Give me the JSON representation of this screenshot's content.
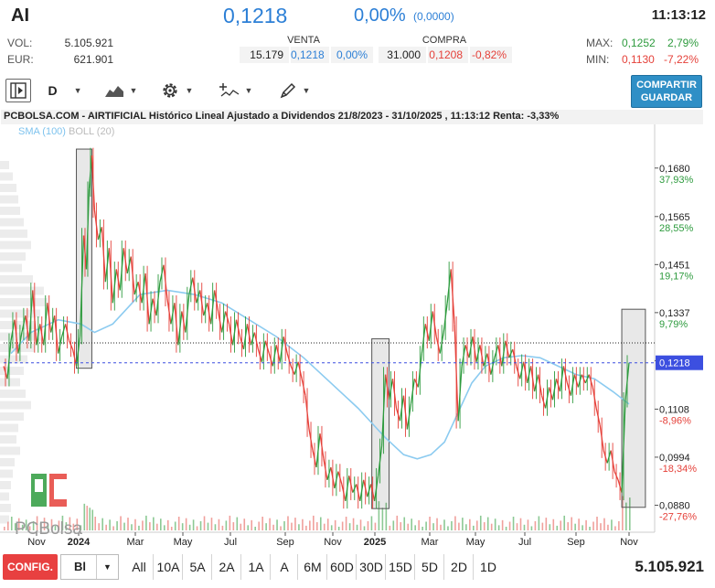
{
  "header": {
    "ticker": "AI",
    "price": "0,1218",
    "change_pct": "0,00%",
    "change_abs": "(0,0000)",
    "time": "11:13:12"
  },
  "stats": {
    "vol_label": "VOL:",
    "vol_value": "5.105.921",
    "eur_label": "EUR:",
    "eur_value": "621.901",
    "max_label": "MAX:",
    "max_value": "0,1252",
    "max_pct": "2,79%",
    "min_label": "MIN:",
    "min_value": "0,1130",
    "min_pct": "-7,22%"
  },
  "book": {
    "venta_label": "VENTA",
    "venta_qty": "15.179",
    "venta_price": "0,1218",
    "venta_pct": "0,00%",
    "compra_label": "COMPRA",
    "compra_qty": "31.000",
    "compra_price": "0,1208",
    "compra_pct": "-0,82%"
  },
  "toolbar": {
    "period": "D",
    "share_line1": "COMPARTIR",
    "share_line2": "GUARDAR",
    "icons": [
      "panel-toggle-icon",
      "area-chart-icon",
      "gear-icon",
      "indicators-icon",
      "drawing-pencil-icon"
    ]
  },
  "chart": {
    "title": "PCBOLSA.COM - AIRTIFICIAL Histórico Lineal Ajustado a Dividendos 21/8/2023 - 31/10/2025 , 11:13:12 Renta: -3,33%",
    "legend_sma": "SMA (100)",
    "legend_boll": "BOLL (20)",
    "watermark": "PCBolsa",
    "colors": {
      "up": "#2e9b3e",
      "down": "#e5413a",
      "sma": "#8ccbf0",
      "last": "#3c4fe0"
    }
  },
  "chart_data": {
    "type": "line",
    "ylim": [
      0.0855,
      0.1775
    ],
    "y_ticks": [
      {
        "value": 0.168,
        "label": "0,1680",
        "pct": "37,93%"
      },
      {
        "value": 0.1565,
        "label": "0,1565",
        "pct": "28,55%"
      },
      {
        "value": 0.1451,
        "label": "0,1451",
        "pct": "19,17%"
      },
      {
        "value": 0.1337,
        "label": "0,1337",
        "pct": "9,79%"
      },
      {
        "value": 0.1223,
        "label": "0,1223",
        "pct": ""
      },
      {
        "value": 0.1108,
        "label": "0,1108",
        "pct": "-8,96%"
      },
      {
        "value": 0.0994,
        "label": "0,0994",
        "pct": "-18,34%"
      },
      {
        "value": 0.088,
        "label": "0,0880",
        "pct": "-27,76%"
      }
    ],
    "x_ticks": [
      {
        "label": "Nov",
        "bold": false
      },
      {
        "label": "2024",
        "bold": true
      },
      {
        "label": "Mar",
        "bold": false
      },
      {
        "label": "May",
        "bold": false
      },
      {
        "label": "Jul",
        "bold": false
      },
      {
        "label": "Sep",
        "bold": false
      },
      {
        "label": "Nov",
        "bold": false
      },
      {
        "label": "2025",
        "bold": true
      },
      {
        "label": "Mar",
        "bold": false
      },
      {
        "label": "May",
        "bold": false
      },
      {
        "label": "Jul",
        "bold": false
      },
      {
        "label": "Sep",
        "bold": false
      },
      {
        "label": "Nov",
        "bold": false
      }
    ],
    "last_price": {
      "value": 0.1218,
      "label": "0,1218"
    },
    "reference_price": 0.1265,
    "price": [
      [
        0,
        0.121
      ],
      [
        4,
        0.118
      ],
      [
        8,
        0.127
      ],
      [
        12,
        0.132
      ],
      [
        16,
        0.124
      ],
      [
        20,
        0.129
      ],
      [
        24,
        0.133
      ],
      [
        28,
        0.127
      ],
      [
        32,
        0.139
      ],
      [
        36,
        0.126
      ],
      [
        40,
        0.131
      ],
      [
        44,
        0.126
      ],
      [
        48,
        0.136
      ],
      [
        52,
        0.129
      ],
      [
        56,
        0.133
      ],
      [
        60,
        0.124
      ],
      [
        64,
        0.128
      ],
      [
        68,
        0.131
      ],
      [
        72,
        0.127
      ],
      [
        76,
        0.125
      ],
      [
        80,
        0.121
      ],
      [
        84,
        0.128
      ],
      [
        88,
        0.152
      ],
      [
        91,
        0.144
      ],
      [
        94,
        0.163
      ],
      [
        97,
        0.171
      ],
      [
        100,
        0.158
      ],
      [
        104,
        0.151
      ],
      [
        108,
        0.154
      ],
      [
        112,
        0.141
      ],
      [
        116,
        0.149
      ],
      [
        120,
        0.136
      ],
      [
        124,
        0.144
      ],
      [
        128,
        0.139
      ],
      [
        132,
        0.149
      ],
      [
        136,
        0.143
      ],
      [
        140,
        0.147
      ],
      [
        144,
        0.138
      ],
      [
        148,
        0.141
      ],
      [
        152,
        0.136
      ],
      [
        156,
        0.143
      ],
      [
        160,
        0.131
      ],
      [
        164,
        0.137
      ],
      [
        168,
        0.133
      ],
      [
        172,
        0.141
      ],
      [
        176,
        0.145
      ],
      [
        180,
        0.137
      ],
      [
        184,
        0.131
      ],
      [
        188,
        0.136
      ],
      [
        192,
        0.126
      ],
      [
        196,
        0.134
      ],
      [
        200,
        0.129
      ],
      [
        204,
        0.138
      ],
      [
        208,
        0.142
      ],
      [
        212,
        0.136
      ],
      [
        216,
        0.139
      ],
      [
        220,
        0.133
      ],
      [
        224,
        0.136
      ],
      [
        228,
        0.131
      ],
      [
        232,
        0.139
      ],
      [
        236,
        0.134
      ],
      [
        240,
        0.129
      ],
      [
        244,
        0.134
      ],
      [
        248,
        0.131
      ],
      [
        252,
        0.126
      ],
      [
        256,
        0.132
      ],
      [
        260,
        0.128
      ],
      [
        264,
        0.125
      ],
      [
        268,
        0.131
      ],
      [
        272,
        0.126
      ],
      [
        276,
        0.129
      ],
      [
        280,
        0.125
      ],
      [
        284,
        0.122
      ],
      [
        288,
        0.127
      ],
      [
        292,
        0.124
      ],
      [
        296,
        0.121
      ],
      [
        300,
        0.126
      ],
      [
        304,
        0.122
      ],
      [
        308,
        0.128
      ],
      [
        312,
        0.124
      ],
      [
        316,
        0.121
      ],
      [
        320,
        0.119
      ],
      [
        324,
        0.122
      ],
      [
        328,
        0.118
      ],
      [
        332,
        0.114
      ],
      [
        336,
        0.106
      ],
      [
        340,
        0.101
      ],
      [
        344,
        0.097
      ],
      [
        348,
        0.105
      ],
      [
        352,
        0.099
      ],
      [
        356,
        0.094
      ],
      [
        360,
        0.097
      ],
      [
        364,
        0.092
      ],
      [
        368,
        0.096
      ],
      [
        372,
        0.093
      ],
      [
        376,
        0.089
      ],
      [
        380,
        0.095
      ],
      [
        384,
        0.091
      ],
      [
        388,
        0.093
      ],
      [
        392,
        0.089
      ],
      [
        396,
        0.094
      ],
      [
        400,
        0.09
      ],
      [
        404,
        0.093
      ],
      [
        408,
        0.089
      ],
      [
        412,
        0.095
      ],
      [
        416,
        0.102
      ],
      [
        420,
        0.119
      ],
      [
        424,
        0.113
      ],
      [
        428,
        0.118
      ],
      [
        432,
        0.111
      ],
      [
        436,
        0.108
      ],
      [
        440,
        0.114
      ],
      [
        444,
        0.106
      ],
      [
        448,
        0.112
      ],
      [
        452,
        0.118
      ],
      [
        456,
        0.116
      ],
      [
        460,
        0.124
      ],
      [
        464,
        0.131
      ],
      [
        468,
        0.127
      ],
      [
        472,
        0.134
      ],
      [
        476,
        0.128
      ],
      [
        480,
        0.124
      ],
      [
        484,
        0.129
      ],
      [
        488,
        0.136
      ],
      [
        492,
        0.144
      ],
      [
        496,
        0.131
      ],
      [
        500,
        0.108
      ],
      [
        504,
        0.121
      ],
      [
        508,
        0.126
      ],
      [
        512,
        0.123
      ],
      [
        516,
        0.128
      ],
      [
        520,
        0.122
      ],
      [
        524,
        0.126
      ],
      [
        528,
        0.121
      ],
      [
        532,
        0.124
      ],
      [
        536,
        0.119
      ],
      [
        540,
        0.123
      ],
      [
        544,
        0.126
      ],
      [
        548,
        0.121
      ],
      [
        552,
        0.127
      ],
      [
        556,
        0.123
      ],
      [
        560,
        0.125
      ],
      [
        564,
        0.121
      ],
      [
        568,
        0.118
      ],
      [
        572,
        0.122
      ],
      [
        576,
        0.117
      ],
      [
        580,
        0.121
      ],
      [
        584,
        0.115
      ],
      [
        588,
        0.119
      ],
      [
        592,
        0.114
      ],
      [
        596,
        0.111
      ],
      [
        600,
        0.116
      ],
      [
        604,
        0.113
      ],
      [
        608,
        0.118
      ],
      [
        612,
        0.115
      ],
      [
        616,
        0.121
      ],
      [
        620,
        0.117
      ],
      [
        624,
        0.114
      ],
      [
        628,
        0.119
      ],
      [
        632,
        0.116
      ],
      [
        636,
        0.119
      ],
      [
        640,
        0.117
      ],
      [
        644,
        0.119
      ],
      [
        648,
        0.116
      ],
      [
        652,
        0.111
      ],
      [
        656,
        0.107
      ],
      [
        660,
        0.101
      ],
      [
        664,
        0.098
      ],
      [
        668,
        0.101
      ],
      [
        672,
        0.096
      ],
      [
        676,
        0.094
      ],
      [
        680,
        0.091
      ],
      [
        684,
        0.113
      ],
      [
        688,
        0.1218
      ]
    ],
    "sma": [
      [
        8,
        0.124
      ],
      [
        30,
        0.129
      ],
      [
        60,
        0.132
      ],
      [
        85,
        0.131
      ],
      [
        100,
        0.129
      ],
      [
        120,
        0.131
      ],
      [
        150,
        0.138
      ],
      [
        180,
        0.139
      ],
      [
        210,
        0.138
      ],
      [
        240,
        0.136
      ],
      [
        270,
        0.132
      ],
      [
        300,
        0.128
      ],
      [
        330,
        0.123
      ],
      [
        360,
        0.117
      ],
      [
        390,
        0.111
      ],
      [
        420,
        0.104
      ],
      [
        440,
        0.1
      ],
      [
        455,
        0.099
      ],
      [
        470,
        0.1
      ],
      [
        485,
        0.103
      ],
      [
        500,
        0.11
      ],
      [
        515,
        0.117
      ],
      [
        530,
        0.121
      ],
      [
        550,
        0.123
      ],
      [
        570,
        0.1235
      ],
      [
        590,
        0.123
      ],
      [
        610,
        0.121
      ],
      [
        630,
        0.119
      ],
      [
        650,
        0.118
      ],
      [
        670,
        0.115
      ],
      [
        688,
        0.112
      ]
    ],
    "highlight_ranges": [
      {
        "from": 80,
        "to": 97,
        "low": 0.1205,
        "high": 0.1725
      },
      {
        "from": 405,
        "to": 424,
        "low": 0.0872,
        "high": 0.1275
      },
      {
        "from": 680,
        "to": 706,
        "low": 0.0875,
        "high": 0.1345
      }
    ]
  },
  "bottom": {
    "config_label": "CONFIG.",
    "select_value": "Bl",
    "ranges": [
      "All",
      "10A",
      "5A",
      "2A",
      "1A",
      "A",
      "6M",
      "60D",
      "30D",
      "15D",
      "5D",
      "2D",
      "1D"
    ],
    "volume_total": "5.105.921"
  }
}
